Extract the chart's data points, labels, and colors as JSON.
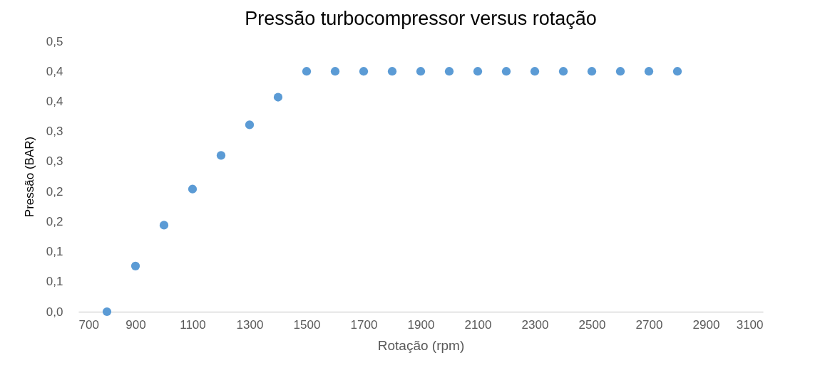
{
  "chart_data": {
    "type": "scatter",
    "title": "Pressão turbocompressor versus rotação",
    "xlabel": "Rotação (rpm)",
    "ylabel": "Pressão (BAR)",
    "x": [
      800,
      900,
      1000,
      1100,
      1200,
      1300,
      1400,
      1500,
      1600,
      1700,
      1800,
      1900,
      2000,
      2100,
      2200,
      2300,
      2400,
      2500,
      2600,
      2700,
      2800
    ],
    "series": [
      {
        "color": "#5b9bd5",
        "values": [
          0.0,
          0.076,
          0.144,
          0.204,
          0.26,
          0.311,
          0.357,
          0.4,
          0.4,
          0.4,
          0.4,
          0.4,
          0.4,
          0.4,
          0.4,
          0.4,
          0.4,
          0.4,
          0.4,
          0.4,
          0.4
        ]
      }
    ],
    "xlim": [
      700,
      3100
    ],
    "xticks": [
      700,
      900,
      1100,
      1300,
      1500,
      1700,
      1900,
      2100,
      2300,
      2500,
      2700,
      2900,
      3100
    ],
    "ylim": [
      0,
      0.45
    ],
    "yticks": [
      {
        "value": 0,
        "label": "0,0"
      },
      {
        "value": 0.05,
        "label": "0,1"
      },
      {
        "value": 0.1,
        "label": "0,1"
      },
      {
        "value": 0.15,
        "label": "0,2"
      },
      {
        "value": 0.2,
        "label": "0,2"
      },
      {
        "value": 0.25,
        "label": "0,3"
      },
      {
        "value": 0.3,
        "label": "0,3"
      },
      {
        "value": 0.35,
        "label": "0,4"
      },
      {
        "value": 0.4,
        "label": "0,4"
      },
      {
        "value": 0.45,
        "label": "0,5"
      }
    ],
    "grid": false
  }
}
